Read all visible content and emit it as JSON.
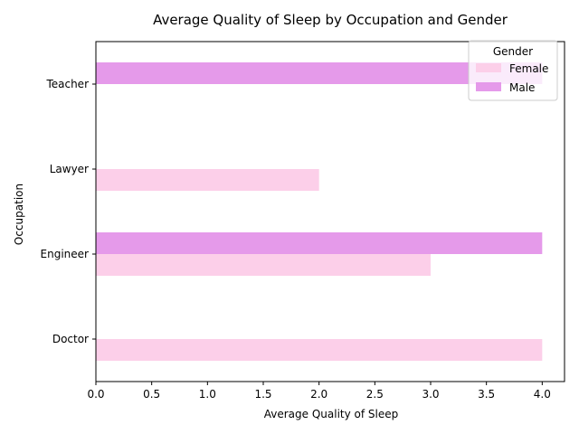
{
  "chart_data": {
    "type": "bar",
    "orientation": "horizontal",
    "title": "Average Quality of Sleep by Occupation and Gender",
    "xlabel": "Average Quality of Sleep",
    "ylabel": "Occupation",
    "categories": [
      "Doctor",
      "Engineer",
      "Lawyer",
      "Teacher"
    ],
    "xlim": [
      0,
      4.2
    ],
    "xticks": [
      "0.0",
      "0.5",
      "1.0",
      "1.5",
      "2.0",
      "2.5",
      "3.0",
      "3.5",
      "4.0"
    ],
    "legend": {
      "title": "Gender",
      "placement": "top-right"
    },
    "grid": false,
    "series": [
      {
        "name": "Female",
        "color": "#fccfe9",
        "values": [
          4,
          3,
          2,
          null
        ]
      },
      {
        "name": "Male",
        "color": "#e59aea",
        "values": [
          null,
          4,
          null,
          4
        ]
      }
    ]
  }
}
